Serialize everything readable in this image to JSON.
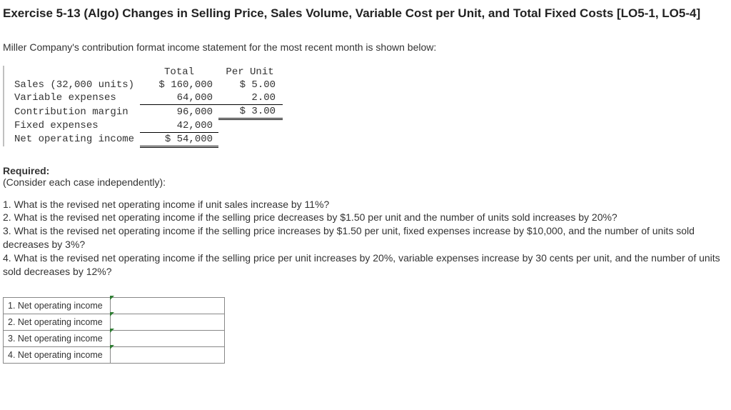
{
  "title_line": "Exercise 5-13 (Algo) Changes in Selling Price, Sales Volume, Variable Cost per Unit, and Total Fixed Costs [LO5-1, LO5-4]",
  "intro": "Miller Company's contribution format income statement for the most recent month is shown below:",
  "table": {
    "headers": {
      "total": "Total",
      "per_unit": "Per Unit"
    },
    "rows": {
      "sales": {
        "label": "Sales (32,000 units)",
        "total": "$ 160,000",
        "per_unit": "$ 5.00"
      },
      "varexp": {
        "label": "Variable expenses",
        "total": "64,000",
        "per_unit": "2.00"
      },
      "cm": {
        "label": "Contribution margin",
        "total": "96,000",
        "per_unit": "$ 3.00"
      },
      "fixed": {
        "label": "Fixed expenses",
        "total": "42,000",
        "per_unit": ""
      },
      "noi": {
        "label": "Net operating income",
        "total": "$ 54,000",
        "per_unit": ""
      }
    }
  },
  "required_hd": "Required:",
  "required_sub": "(Consider each case independently):",
  "questions": {
    "q1": "1. What is the revised net operating income if unit sales increase by 11%?",
    "q2": "2. What is the revised net operating income if the selling price decreases by $1.50 per unit and the number of units sold increases by 20%?",
    "q3": "3. What is the revised net operating income if the selling price increases by $1.50 per unit, fixed expenses increase by $10,000, and the number of units sold decreases by 3%?",
    "q4": "4. What is the revised net operating income if the selling price per unit increases by 20%, variable expenses increase by 30 cents per unit, and the number of units sold decreases by 12%?"
  },
  "answers": {
    "r1": {
      "label": "1. Net operating income",
      "value": ""
    },
    "r2": {
      "label": "2. Net operating income",
      "value": ""
    },
    "r3": {
      "label": "3. Net operating income",
      "value": ""
    },
    "r4": {
      "label": "4. Net operating income",
      "value": ""
    }
  },
  "colors": {
    "text": "#333333",
    "border": "#888888",
    "tick": "#2e7d32",
    "table_tick": "#c0c0c0"
  }
}
